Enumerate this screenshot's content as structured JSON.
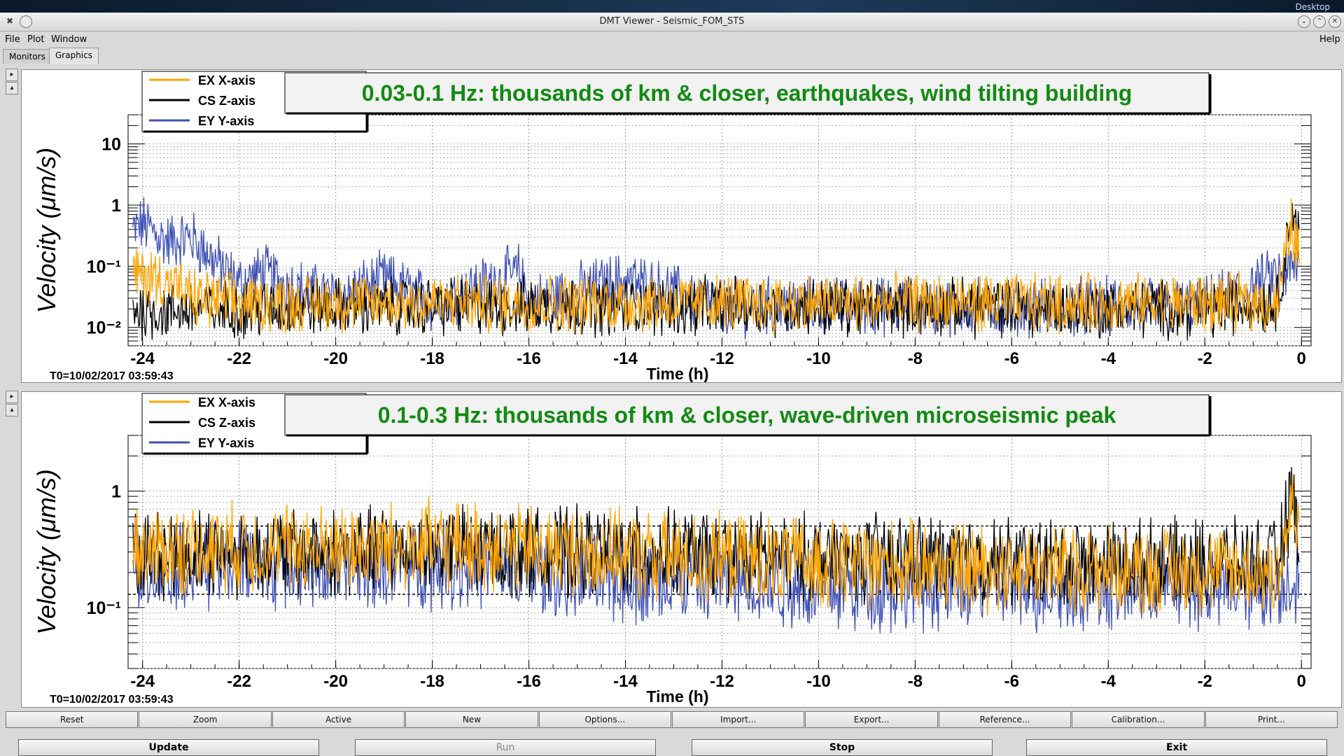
{
  "window": {
    "desktop_label": "Desktop",
    "title": "DMT Viewer - Seismic_FOM_STS"
  },
  "menu": {
    "file": "File",
    "plot": "Plot",
    "window": "Window",
    "help": "Help"
  },
  "tabs": {
    "monitors": "Monitors",
    "graphics": "Graphics"
  },
  "plot_buttons": [
    "Reset",
    "Zoom",
    "Active",
    "New",
    "Options...",
    "Import...",
    "Export...",
    "Reference...",
    "Calibration...",
    "Print..."
  ],
  "bottom_buttons": {
    "update": "Update",
    "run": "Run",
    "stop": "Stop",
    "exit": "Exit"
  },
  "colors": {
    "ex_x": "#ffa500",
    "cs_z": "#000000",
    "ey_y": "#3f51b5",
    "banner_text": "#138a13"
  },
  "chart_data": [
    {
      "type": "line",
      "title": "0.03-0.1 Hz: thousands of km & closer, earthquakes, wind tilting building",
      "xlabel": "Time (h)",
      "ylabel": "Velocity  (μm/s)",
      "yscale": "log",
      "xlim": [
        -24.3,
        0.2
      ],
      "ylim": [
        0.005,
        30
      ],
      "x_ticks": [
        "-24",
        "-22",
        "-20",
        "-18",
        "-16",
        "-14",
        "-12",
        "-10",
        "-8",
        "-6",
        "-4",
        "-2",
        "0"
      ],
      "y_ticks": [
        "10",
        "1",
        "10⁻¹",
        "10⁻²"
      ],
      "t0_label": "T0=10/02/2017 03:59:43",
      "legend_placement": "top-left",
      "grid": true,
      "series": [
        {
          "name": "EX X-axis",
          "color": "#ffa500",
          "x": [
            -24.3,
            -23.5,
            -23,
            -22,
            -20,
            -18,
            -16,
            -14,
            -12,
            -10,
            -8,
            -6,
            -4,
            -2,
            -0.5,
            -0.2,
            0
          ],
          "y": [
            0.08,
            0.06,
            0.03,
            0.025,
            0.025,
            0.025,
            0.025,
            0.025,
            0.025,
            0.025,
            0.025,
            0.025,
            0.025,
            0.025,
            0.025,
            0.5,
            0.1
          ]
        },
        {
          "name": "CS Z-axis",
          "color": "#000000",
          "x": [
            -24.3,
            -23.5,
            -23,
            -22,
            -20,
            -18,
            -16,
            -14,
            -12,
            -10,
            -8,
            -6,
            -4,
            -2,
            -0.5,
            -0.2,
            0
          ],
          "y": [
            0.02,
            0.018,
            0.02,
            0.02,
            0.022,
            0.022,
            0.022,
            0.022,
            0.022,
            0.022,
            0.022,
            0.02,
            0.02,
            0.02,
            0.025,
            0.8,
            0.2
          ]
        },
        {
          "name": "EY Y-axis",
          "color": "#3f51b5",
          "x": [
            -24.3,
            -24,
            -23.5,
            -23,
            -22,
            -21.5,
            -21,
            -20,
            -19,
            -18,
            -16.2,
            -16,
            -14,
            -12,
            -10,
            -8,
            -6,
            -4,
            -2,
            0
          ],
          "y": [
            0.3,
            0.5,
            0.25,
            0.3,
            0.05,
            0.08,
            0.05,
            0.03,
            0.06,
            0.025,
            0.08,
            0.025,
            0.06,
            0.022,
            0.022,
            0.022,
            0.022,
            0.022,
            0.022,
            0.1
          ]
        }
      ]
    },
    {
      "type": "line",
      "title": "0.1-0.3 Hz: thousands of km & closer, wave-driven microseismic peak",
      "xlabel": "Time (h)",
      "ylabel": "Velocity  (μm/s)",
      "yscale": "log",
      "xlim": [
        -24.3,
        0.2
      ],
      "ylim": [
        0.03,
        3
      ],
      "x_ticks": [
        "-24",
        "-22",
        "-20",
        "-18",
        "-16",
        "-14",
        "-12",
        "-10",
        "-8",
        "-6",
        "-4",
        "-2",
        "0"
      ],
      "y_ticks": [
        "1",
        "10⁻¹"
      ],
      "t0_label": "T0=10/02/2017 03:59:43",
      "legend_placement": "top-left",
      "grid": true,
      "reference_lines": [
        0.5,
        0.13
      ],
      "series": [
        {
          "name": "EX X-axis",
          "color": "#ffa500",
          "x": [
            -24.3,
            -22,
            -20,
            -18,
            -16,
            -14,
            -12,
            -10,
            -8,
            -6,
            -4,
            -2,
            -0.5,
            -0.2,
            0
          ],
          "y": [
            0.3,
            0.33,
            0.32,
            0.35,
            0.32,
            0.28,
            0.26,
            0.24,
            0.23,
            0.22,
            0.21,
            0.21,
            0.2,
            0.7,
            0.3
          ]
        },
        {
          "name": "CS Z-axis",
          "color": "#000000",
          "x": [
            -24.3,
            -22,
            -20,
            -18,
            -16,
            -14,
            -12,
            -10,
            -8,
            -6,
            -4,
            -2,
            -0.5,
            -0.2,
            0
          ],
          "y": [
            0.28,
            0.3,
            0.3,
            0.32,
            0.3,
            0.3,
            0.28,
            0.27,
            0.26,
            0.25,
            0.24,
            0.24,
            0.24,
            0.9,
            0.35
          ]
        },
        {
          "name": "EY Y-axis",
          "color": "#3f51b5",
          "x": [
            -24.3,
            -22,
            -20,
            -18,
            -16,
            -14,
            -12,
            -10,
            -8,
            -6,
            -4,
            -2,
            -0.5,
            0
          ],
          "y": [
            0.22,
            0.24,
            0.22,
            0.24,
            0.2,
            0.17,
            0.17,
            0.15,
            0.15,
            0.15,
            0.15,
            0.15,
            0.15,
            0.2
          ]
        }
      ]
    }
  ]
}
